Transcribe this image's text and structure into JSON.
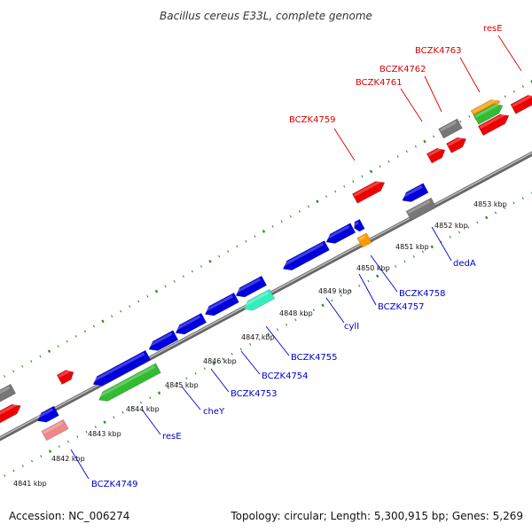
{
  "title": "Bacillus cereus E33L, complete genome",
  "accession": "Accession: NC_006274",
  "summary": "Topology: circular; Length: 5,300,915 bp; Genes: 5,269",
  "colors": {
    "backbone": "#8c8c8c",
    "ticks": "#2e8b2e",
    "label_forward": "#dd0000",
    "label_reverse": "#0000cc",
    "cds_forward": "#ee0000",
    "cds_reverse": "#0000dd",
    "gray": "#777777",
    "orange": "#ff9900",
    "green": "#33bb33",
    "teal": "#33eebb",
    "pink": "#ee8888"
  },
  "tick_labels": [
    "4841 kbp",
    "4842 kbp",
    "4843 kbp",
    "4844 kbp",
    "4845 kbp",
    "4846 kbp",
    "4847 kbp",
    "4848 kbp",
    "4849 kbp",
    "4850 kbp",
    "4851 kbp",
    "4852 kbp",
    "4853 kbp"
  ],
  "forward_labels": [
    "BCZK4759",
    "BCZK4761",
    "BCZK4762",
    "BCZK4763",
    "resE"
  ],
  "reverse_labels": [
    "BCZK4749",
    "resE",
    "cheY",
    "BCZK4753",
    "BCZK4754",
    "BCZK4755",
    "cylI",
    "BCZK4757",
    "BCZK4758",
    "dedA"
  ]
}
